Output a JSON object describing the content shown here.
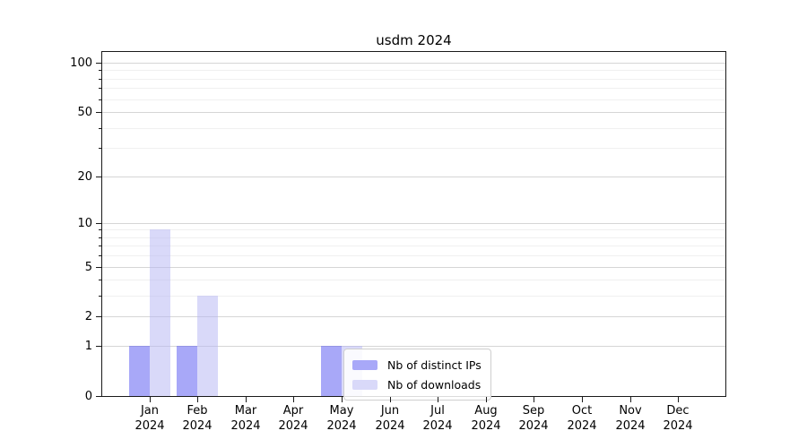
{
  "figure": {
    "background": "#ffffff"
  },
  "chart_data": {
    "type": "bar",
    "title": "usdm 2024",
    "xlabel": "",
    "ylabel": "",
    "categories": [
      "Jan",
      "Feb",
      "Mar",
      "Apr",
      "May",
      "Jun",
      "Jul",
      "Aug",
      "Sep",
      "Oct",
      "Nov",
      "Dec"
    ],
    "category_year_suffix": "2024",
    "series": [
      {
        "name": "Nb of distinct IPs",
        "color": "#a8a8f8",
        "fill": "rgba(81,81,241,0.5)",
        "values": [
          1,
          1,
          0,
          0,
          1,
          0,
          0,
          0,
          0,
          0,
          0,
          0
        ]
      },
      {
        "name": "Nb of downloads",
        "color": "#d9d9f9",
        "fill": "rgba(179,179,243,0.5)",
        "values": [
          9,
          3,
          0,
          0,
          1,
          0,
          0,
          0,
          0,
          0,
          0,
          0
        ]
      }
    ],
    "yscale": "log1p",
    "ylim": [
      0,
      115
    ],
    "yticks": [
      0,
      1,
      2,
      5,
      10,
      20,
      50,
      100
    ],
    "yticks_minor": [
      3,
      4,
      6,
      7,
      8,
      9,
      30,
      40,
      60,
      70,
      80,
      90
    ],
    "grid": {
      "major_color": "#d6d6d6",
      "minor_color": "#f0f0f0"
    },
    "legend": {
      "position": "inside-lower-center"
    },
    "axis_color": "#1a1a1a"
  }
}
